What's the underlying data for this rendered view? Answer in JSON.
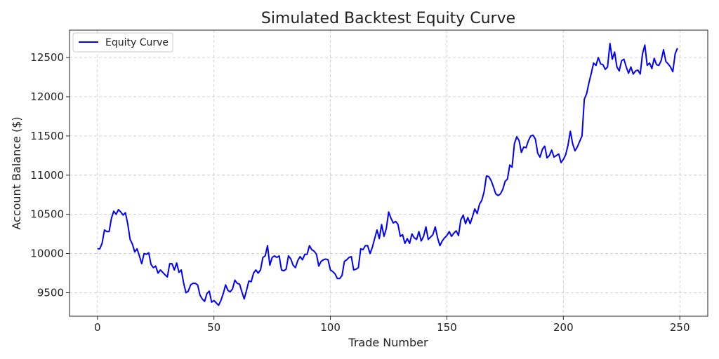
{
  "chart_data": {
    "type": "line",
    "title": "Simulated Backtest Equity Curve",
    "xlabel": "Trade Number",
    "ylabel": "Account Balance ($)",
    "xlim": [
      -12,
      262
    ],
    "ylim": [
      9200,
      12850
    ],
    "xticks": [
      0,
      50,
      100,
      150,
      200,
      250
    ],
    "yticks": [
      9500,
      10000,
      10500,
      11000,
      11500,
      12000,
      12500
    ],
    "grid": true,
    "legend_position": "top-left",
    "colors": {
      "line": "#0000ff",
      "grid": "#c8c8c8",
      "axes": "#222222"
    },
    "series": [
      {
        "name": "Equity Curve",
        "x": [
          0,
          1,
          2,
          3,
          4,
          5,
          6,
          7,
          8,
          9,
          10,
          11,
          12,
          13,
          14,
          15,
          16,
          17,
          18,
          19,
          20,
          21,
          22,
          23,
          24,
          25,
          26,
          27,
          28,
          29,
          30,
          31,
          32,
          33,
          34,
          35,
          36,
          37,
          38,
          39,
          40,
          41,
          42,
          43,
          44,
          45,
          46,
          47,
          48,
          49,
          50,
          51,
          52,
          53,
          54,
          55,
          56,
          57,
          58,
          59,
          60,
          61,
          62,
          63,
          64,
          65,
          66,
          67,
          68,
          69,
          70,
          71,
          72,
          73,
          74,
          75,
          76,
          77,
          78,
          79,
          80,
          81,
          82,
          83,
          84,
          85,
          86,
          87,
          88,
          89,
          90,
          91,
          92,
          93,
          94,
          95,
          96,
          97,
          98,
          99,
          100,
          101,
          102,
          103,
          104,
          105,
          106,
          107,
          108,
          109,
          110,
          111,
          112,
          113,
          114,
          115,
          116,
          117,
          118,
          119,
          120,
          121,
          122,
          123,
          124,
          125,
          126,
          127,
          128,
          129,
          130,
          131,
          132,
          133,
          134,
          135,
          136,
          137,
          138,
          139,
          140,
          141,
          142,
          143,
          144,
          145,
          146,
          147,
          148,
          149,
          150,
          151,
          152,
          153,
          154,
          155,
          156,
          157,
          158,
          159,
          160,
          161,
          162,
          163,
          164,
          165,
          166,
          167,
          168,
          169,
          170,
          171,
          172,
          173,
          174,
          175,
          176,
          177,
          178,
          179,
          180,
          181,
          182,
          183,
          184,
          185,
          186,
          187,
          188,
          189,
          190,
          191,
          192,
          193,
          194,
          195,
          196,
          197,
          198,
          199,
          200,
          201,
          202,
          203,
          204,
          205,
          206,
          207,
          208,
          209,
          210,
          211,
          212,
          213,
          214,
          215,
          216,
          217,
          218,
          219,
          220,
          221,
          222,
          223,
          224,
          225,
          226,
          227,
          228,
          229,
          230,
          231,
          232,
          233,
          234,
          235,
          236,
          237,
          238,
          239,
          240,
          241,
          242,
          243,
          244,
          245,
          246,
          247,
          248,
          249
        ],
        "y": [
          10060,
          10060,
          10130,
          10300,
          10280,
          10280,
          10450,
          10540,
          10500,
          10560,
          10530,
          10490,
          10520,
          10380,
          10180,
          10120,
          10020,
          10060,
          9970,
          9870,
          10000,
          9990,
          10010,
          9860,
          9820,
          9840,
          9750,
          9790,
          9760,
          9730,
          9700,
          9870,
          9870,
          9790,
          9880,
          9760,
          9790,
          9620,
          9500,
          9520,
          9600,
          9620,
          9620,
          9600,
          9470,
          9420,
          9390,
          9490,
          9520,
          9380,
          9400,
          9370,
          9340,
          9400,
          9490,
          9600,
          9530,
          9510,
          9550,
          9660,
          9620,
          9610,
          9510,
          9420,
          9530,
          9650,
          9640,
          9750,
          9790,
          9750,
          9790,
          9950,
          9970,
          10100,
          9850,
          9950,
          9970,
          9950,
          9970,
          9790,
          9780,
          9800,
          9970,
          9930,
          9850,
          9820,
          9910,
          9960,
          9920,
          9990,
          9990,
          10100,
          10050,
          10030,
          9990,
          9840,
          9900,
          9920,
          9930,
          9920,
          9790,
          9770,
          9740,
          9680,
          9680,
          9720,
          9900,
          9920,
          9950,
          9960,
          9790,
          9800,
          9820,
          10060,
          10050,
          10100,
          10100,
          10000,
          10080,
          10190,
          10300,
          10190,
          10370,
          10220,
          10320,
          10530,
          10450,
          10390,
          10410,
          10370,
          10220,
          10240,
          10130,
          10190,
          10130,
          10250,
          10200,
          10180,
          10280,
          10160,
          10220,
          10340,
          10180,
          10210,
          10240,
          10340,
          10200,
          10100,
          10160,
          10200,
          10230,
          10280,
          10220,
          10260,
          10290,
          10230,
          10430,
          10490,
          10380,
          10460,
          10380,
          10470,
          10570,
          10510,
          10630,
          10680,
          10790,
          10990,
          10980,
          10930,
          10850,
          10760,
          10740,
          10760,
          10820,
          10920,
          10950,
          11130,
          11100,
          11400,
          11490,
          11440,
          11290,
          11360,
          11350,
          11440,
          11500,
          11510,
          11460,
          11280,
          11230,
          11330,
          11370,
          11220,
          11250,
          11320,
          11230,
          11250,
          11270,
          11160,
          11200,
          11260,
          11380,
          11560,
          11400,
          11310,
          11360,
          11430,
          11500,
          11970,
          12040,
          12180,
          12300,
          12430,
          12400,
          12500,
          12420,
          12410,
          12350,
          12380,
          12680,
          12480,
          12570,
          12380,
          12330,
          12460,
          12480,
          12380,
          12300,
          12380,
          12290,
          12330,
          12340,
          12290,
          12550,
          12660,
          12400,
          12430,
          12360,
          12490,
          12410,
          12400,
          12460,
          12600,
          12450,
          12420,
          12380,
          12320,
          12550,
          12620
        ]
      }
    ]
  }
}
